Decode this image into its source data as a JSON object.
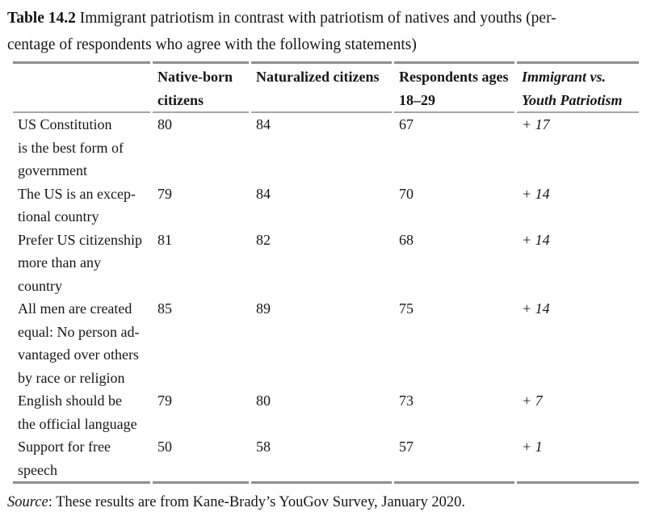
{
  "caption": {
    "label": "Table 14.2",
    "text": " Immigrant patriotism in contrast with patriotism of natives and youths (per-\ncentage of respondents who agree with the following statements)"
  },
  "table": {
    "headers": {
      "statement": "",
      "native_born": [
        "Native-born",
        "citizens"
      ],
      "naturalized": [
        "Naturalized citizens"
      ],
      "ages_18_29": [
        "Respondents ages",
        "18–29"
      ],
      "immigrant_vs_youth": [
        "Immigrant vs.",
        "Youth Patriotism"
      ]
    },
    "rows": [
      {
        "statement": [
          "US Constitution",
          "is the best form of",
          "government"
        ],
        "native_born": "80",
        "naturalized": "84",
        "ages_18_29": "67",
        "immigrant_vs_youth": "+ 17"
      },
      {
        "statement": [
          "The US is an excep-",
          "tional country"
        ],
        "native_born": "79",
        "naturalized": "84",
        "ages_18_29": "70",
        "immigrant_vs_youth": "+ 14"
      },
      {
        "statement": [
          "Prefer US citizenship",
          "more than any",
          "country"
        ],
        "native_born": "81",
        "naturalized": "82",
        "ages_18_29": "68",
        "immigrant_vs_youth": "+ 14"
      },
      {
        "statement": [
          "All men are created",
          "equal: No person ad-",
          "vantaged over others",
          "by race or religion"
        ],
        "native_born": "85",
        "naturalized": "89",
        "ages_18_29": "75",
        "immigrant_vs_youth": "+ 14"
      },
      {
        "statement": [
          "English should be",
          "the official language"
        ],
        "native_born": "79",
        "naturalized": "80",
        "ages_18_29": "73",
        "immigrant_vs_youth": "+ 7"
      },
      {
        "statement": [
          "Support for free",
          "speech"
        ],
        "native_born": "50",
        "naturalized": "58",
        "ages_18_29": "57",
        "immigrant_vs_youth": "+ 1"
      }
    ]
  },
  "source": {
    "label": "Source",
    "text": ": These results are from Kane-Brady’s YouGov Survey, January 2020."
  },
  "colors": {
    "rule_heavy": "#8e8e8e",
    "rule_light": "#a6a6a6",
    "text": "#161616",
    "background": "#ffffff"
  }
}
